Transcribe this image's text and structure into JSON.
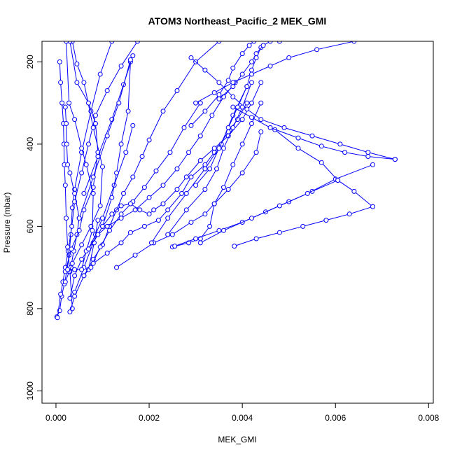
{
  "chart_data": {
    "type": "line",
    "title": "ATOM3 Northeast_Pacific_2 MEK_GMI",
    "xlabel": "MEK_GMI",
    "ylabel": "Pressure (mbar)",
    "xlim": [
      -0.0003,
      0.0081
    ],
    "ylim": [
      1030,
      150
    ],
    "y_reversed": true,
    "x_ticks": [
      0.0,
      0.002,
      0.004,
      0.006,
      0.008
    ],
    "x_tick_labels": [
      "0.000",
      "0.002",
      "0.004",
      "0.006",
      "0.008"
    ],
    "y_ticks": [
      200,
      400,
      600,
      800,
      1000
    ],
    "y_tick_labels": [
      "200",
      "400",
      "600",
      "800",
      "1000"
    ],
    "grid": false,
    "series_color": "#0000ff",
    "series": [
      {
        "x": [
          2e-05,
          8e-05,
          0.00012,
          0.00018,
          0.00024,
          0.00028,
          0.00032,
          0.00035,
          0.0004,
          0.00055,
          0.00075,
          0.00095,
          0.0012
        ],
        "y": [
          820,
          805,
          770,
          740,
          705,
          670,
          620,
          555,
          510,
          420,
          320,
          230,
          150
        ]
      },
      {
        "x": [
          3e-05,
          0.0001,
          0.00015,
          0.0002,
          0.00026,
          0.00034,
          0.0004,
          0.00055,
          0.0007,
          0.00085,
          0.0011,
          0.0014,
          0.00175
        ],
        "y": [
          822,
          765,
          735,
          700,
          660,
          600,
          540,
          470,
          400,
          330,
          270,
          210,
          150
        ]
      },
      {
        "x": [
          0.00035,
          0.0003,
          0.00025,
          0.00022,
          0.0002,
          0.00018,
          0.00017,
          0.00016,
          0.00013,
          0.0001,
          8e-05
        ],
        "y": [
          800,
          710,
          650,
          580,
          500,
          450,
          400,
          350,
          300,
          250,
          200
        ]
      },
      {
        "x": [
          0.00028,
          0.00032,
          0.00038,
          0.00045,
          0.0005,
          0.0004,
          0.0003,
          0.00025,
          0.00023,
          0.00022,
          0.0002
        ],
        "y": [
          710,
          700,
          660,
          620,
          580,
          520,
          470,
          450,
          400,
          350,
          310
        ]
      },
      {
        "x": [
          0.0003,
          0.0004,
          0.00055,
          0.0007,
          0.00085,
          0.001,
          0.00125,
          0.0015,
          0.00165
        ],
        "y": [
          775,
          720,
          680,
          655,
          620,
          580,
          500,
          420,
          355
        ]
      },
      {
        "x": [
          0.0004,
          0.0006,
          0.0008,
          0.001,
          0.0012,
          0.0013,
          0.0014,
          0.00155,
          0.0016
        ],
        "y": [
          760,
          700,
          640,
          600,
          530,
          470,
          400,
          320,
          200
        ]
      },
      {
        "x": [
          0.0002,
          0.00035,
          0.00055,
          0.00075,
          0.00095,
          0.001,
          0.0008,
          0.0006,
          0.00045,
          0.00035
        ],
        "y": [
          735,
          690,
          645,
          600,
          550,
          455,
          360,
          250,
          205,
          150
        ]
      },
      {
        "x": [
          0.0002,
          0.00033,
          0.0005,
          0.0006,
          0.0008,
          0.0009,
          0.00085,
          0.0007,
          0.00045,
          0.0003
        ],
        "y": [
          710,
          655,
          610,
          560,
          505,
          420,
          350,
          300,
          250,
          150
        ]
      },
      {
        "x": [
          0.00025,
          0.0004,
          0.00055,
          0.00065,
          0.00078,
          0.0008,
          0.00065,
          0.00055,
          0.0004,
          0.00028,
          0.00022
        ],
        "y": [
          705,
          705,
          705,
          660,
          610,
          520,
          450,
          410,
          340,
          300,
          150
        ]
      },
      {
        "x": [
          0.0003,
          0.0004,
          0.0006,
          0.0007,
          0.00082,
          0.0009
        ],
        "y": [
          808,
          770,
          720,
          705,
          640,
          585
        ]
      },
      {
        "x": [
          0.0006,
          0.0008,
          0.001,
          0.00115,
          0.0013,
          0.00145,
          0.00165,
          0.00185,
          0.002,
          0.0023,
          0.0026,
          0.003,
          0.0035
        ],
        "y": [
          720,
          680,
          645,
          600,
          560,
          520,
          480,
          430,
          390,
          320,
          270,
          200,
          150
        ]
      },
      {
        "x": [
          0.00075,
          0.00095,
          0.00115,
          0.0014,
          0.00165,
          0.0019,
          0.00215,
          0.00245,
          0.00275,
          0.0031
        ],
        "y": [
          700,
          650,
          610,
          570,
          540,
          505,
          465,
          420,
          360,
          300
        ]
      },
      {
        "x": [
          0.0007,
          0.0009,
          0.0011,
          0.0014,
          0.0017,
          0.002,
          0.0023,
          0.0026,
          0.00285,
          0.0031,
          0.00335,
          0.0036,
          0.00385
        ],
        "y": [
          655,
          620,
          600,
          580,
          560,
          530,
          500,
          460,
          420,
          380,
          330,
          285,
          250
        ]
      },
      {
        "x": [
          0.0008,
          0.0011,
          0.0014,
          0.0016,
          0.0019,
          0.0022,
          0.0024,
          0.0027,
          0.0029,
          0.0032,
          0.0034,
          0.0037,
          0.0039,
          0.0041
        ],
        "y": [
          690,
          665,
          640,
          615,
          600,
          585,
          560,
          520,
          480,
          450,
          420,
          370,
          340,
          300
        ]
      },
      {
        "x": [
          0.001,
          0.0012,
          0.0014,
          0.0016,
          0.0018,
          0.002,
          0.0021,
          0.0023,
          0.0026,
          0.0028,
          0.0031,
          0.0034,
          0.0037,
          0.004,
          0.0042,
          0.0044
        ],
        "y": [
          600,
          570,
          550,
          545,
          560,
          570,
          560,
          545,
          510,
          480,
          440,
          410,
          380,
          340,
          300,
          250
        ]
      },
      {
        "x": [
          0.0013,
          0.0017,
          0.0021,
          0.0025,
          0.0029,
          0.0032,
          0.0034,
          0.0037,
          0.004,
          0.0043,
          0.0044
        ],
        "y": [
          700,
          670,
          640,
          620,
          590,
          570,
          545,
          510,
          470,
          420,
          370
        ]
      },
      {
        "x": [
          0.0025,
          0.00285,
          0.0031,
          0.0033,
          0.0034,
          0.0036,
          0.0038,
          0.004,
          0.0042,
          0.0044
        ],
        "y": [
          650,
          640,
          630,
          600,
          545,
          505,
          450,
          400,
          350,
          300
        ]
      },
      {
        "x": [
          0.00255,
          0.003,
          0.0035,
          0.004,
          0.0045,
          0.005,
          0.0055,
          0.00605
        ],
        "y": [
          648,
          630,
          610,
          590,
          565,
          540,
          515,
          488
        ]
      },
      {
        "x": [
          0.0031,
          0.0036,
          0.0042,
          0.0048,
          0.0054,
          0.006,
          0.0068
        ],
        "y": [
          640,
          610,
          580,
          550,
          520,
          485,
          450
        ]
      },
      {
        "x": [
          0.00383,
          0.0043,
          0.0048,
          0.0053,
          0.0058,
          0.0063,
          0.0068
        ],
        "y": [
          648,
          630,
          615,
          600,
          585,
          570,
          552
        ]
      },
      {
        "x": [
          0.0047,
          0.0052,
          0.0057,
          0.00605,
          0.0064,
          0.0068
        ],
        "y": [
          365,
          410,
          445,
          488,
          515,
          552
        ]
      },
      {
        "x": [
          0.0038,
          0.0042,
          0.0046,
          0.0052,
          0.0057,
          0.0062,
          0.0067,
          0.00728
        ],
        "y": [
          310,
          335,
          360,
          385,
          405,
          420,
          430,
          437
        ]
      },
      {
        "x": [
          0.00728,
          0.0067,
          0.0061,
          0.0055,
          0.0049,
          0.0044,
          0.0041,
          0.0038,
          0.0035,
          0.0032,
          0.0029
        ],
        "y": [
          437,
          420,
          400,
          380,
          360,
          340,
          315,
          285,
          250,
          220,
          190
        ]
      },
      {
        "x": [
          0.0006,
          0.0009,
          0.0012,
          0.00145,
          0.00165
        ],
        "y": [
          520,
          430,
          340,
          255,
          185
        ]
      },
      {
        "x": [
          0.0005,
          0.0008,
          0.0011,
          0.00135,
          0.0016
        ],
        "y": [
          580,
          480,
          380,
          300,
          195
        ]
      },
      {
        "x": [
          0.00205,
          0.0024,
          0.0028,
          0.0032,
          0.00355,
          0.0038,
          0.0041
        ],
        "y": [
          640,
          580,
          520,
          460,
          400,
          330,
          260
        ]
      },
      {
        "x": [
          0.0024,
          0.0028,
          0.0032,
          0.00345,
          0.0036,
          0.0038,
          0.004,
          0.0042
        ],
        "y": [
          620,
          560,
          510,
          460,
          410,
          360,
          310,
          250
        ]
      },
      {
        "x": [
          0.003,
          0.0033,
          0.0035,
          0.0037,
          0.0039,
          0.0041,
          0.0042,
          0.0043,
          0.0044
        ],
        "y": [
          500,
          460,
          410,
          360,
          310,
          260,
          220,
          190,
          165
        ]
      },
      {
        "x": [
          0.0029,
          0.0032,
          0.0035,
          0.0037,
          0.0038,
          0.004,
          0.00415,
          0.00425
        ],
        "y": [
          355,
          320,
          280,
          245,
          215,
          180,
          160,
          150
        ]
      },
      {
        "x": [
          0.0035,
          0.0038,
          0.004,
          0.0042,
          0.0043,
          0.00445,
          0.0046,
          0.0048
        ],
        "y": [
          290,
          260,
          230,
          200,
          180,
          160,
          150,
          150
        ]
      },
      {
        "x": [
          0.003,
          0.0034,
          0.0038,
          0.0042,
          0.0046,
          0.005,
          0.0056,
          0.0064
        ],
        "y": [
          300,
          275,
          250,
          230,
          210,
          190,
          170,
          150
        ]
      }
    ]
  }
}
